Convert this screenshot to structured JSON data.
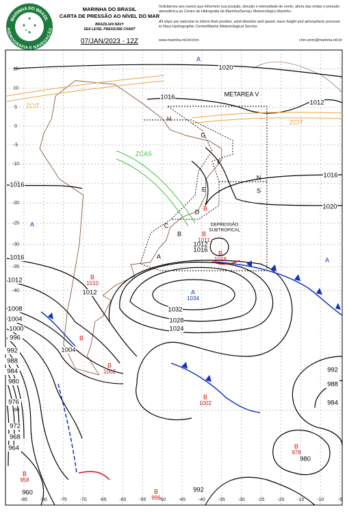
{
  "header": {
    "org": "MARINHA DO BRASIL",
    "title": "CARTA DE PRESSÃO AO NÍVEL DO MAR",
    "subtitle_1": "BRAZILIAN NAVY",
    "subtitle_2": "SEA LEVEL PRESSURE CHART",
    "date": "07/JAN/2023 - 12Z",
    "notice_pt": "Solicitamos aos navios que informem sua posição, direção e intensidade do vento, altura das ondas e pressão atmosférica ao Centro de Hidrografia da Marinha/Serviço Meteorológico Marinho.",
    "notice_en": "All ships are welcome to inform their position, wind direction and speed, wave height and atmospheric pressure to Navy Hydrographic Centre/Marine Meteorological Service.",
    "website": "www.marinha.mil.br/chm",
    "email": "chm.smm@marinha.mil.br"
  },
  "logo": {
    "top": "MARINHA DO BRASIL",
    "bottom": "HIDROGRAFIA E NAVEGAÇÃO"
  },
  "lat_ticks": [
    15,
    10,
    5,
    0,
    -5,
    -10,
    -15,
    -20,
    -25,
    -30,
    -35,
    -40,
    -60
  ],
  "lon_ticks": [
    -85,
    -80,
    -75,
    -70,
    -65,
    -60,
    -55,
    -50,
    -45,
    -40,
    -35,
    -30,
    -25,
    -20,
    -15,
    -10,
    -5
  ],
  "isobar_labels": [
    1020,
    1016,
    1012,
    1016,
    1020,
    1016,
    1016,
    1012,
    1012,
    1008,
    1004,
    1000,
    996,
    992,
    988,
    984,
    980,
    976,
    972,
    968,
    964,
    960,
    1032,
    1028,
    1024,
    1012,
    1016,
    1004,
    992,
    988,
    984,
    980,
    992
  ],
  "centers": [
    {
      "type": "A"
    },
    {
      "type": "A"
    },
    {
      "type": "A"
    },
    {
      "type": "A",
      "pressure": 1034
    },
    {
      "type": "B",
      "pressure": 1010
    },
    {
      "type": "B",
      "pressure": 1002
    },
    {
      "type": "B",
      "pressure": 1002
    },
    {
      "type": "B",
      "pressure": 1018
    },
    {
      "type": "B",
      "pressure": 1011
    },
    {
      "type": "B",
      "pressure": 978
    },
    {
      "type": "B",
      "pressure": 958
    },
    {
      "type": "B",
      "pressure": 996
    },
    {
      "type": "B"
    },
    {
      "type": "B"
    }
  ],
  "metarea": {
    "title": "METAREA V",
    "areas": [
      "H",
      "G",
      "F",
      "N",
      "S",
      "E",
      "D",
      "C",
      "B",
      "A"
    ]
  },
  "features": [
    "ZCIT",
    "ZCIT",
    "ZCAS",
    "DEPRESSÃO",
    "SUBTROPICAL"
  ]
}
